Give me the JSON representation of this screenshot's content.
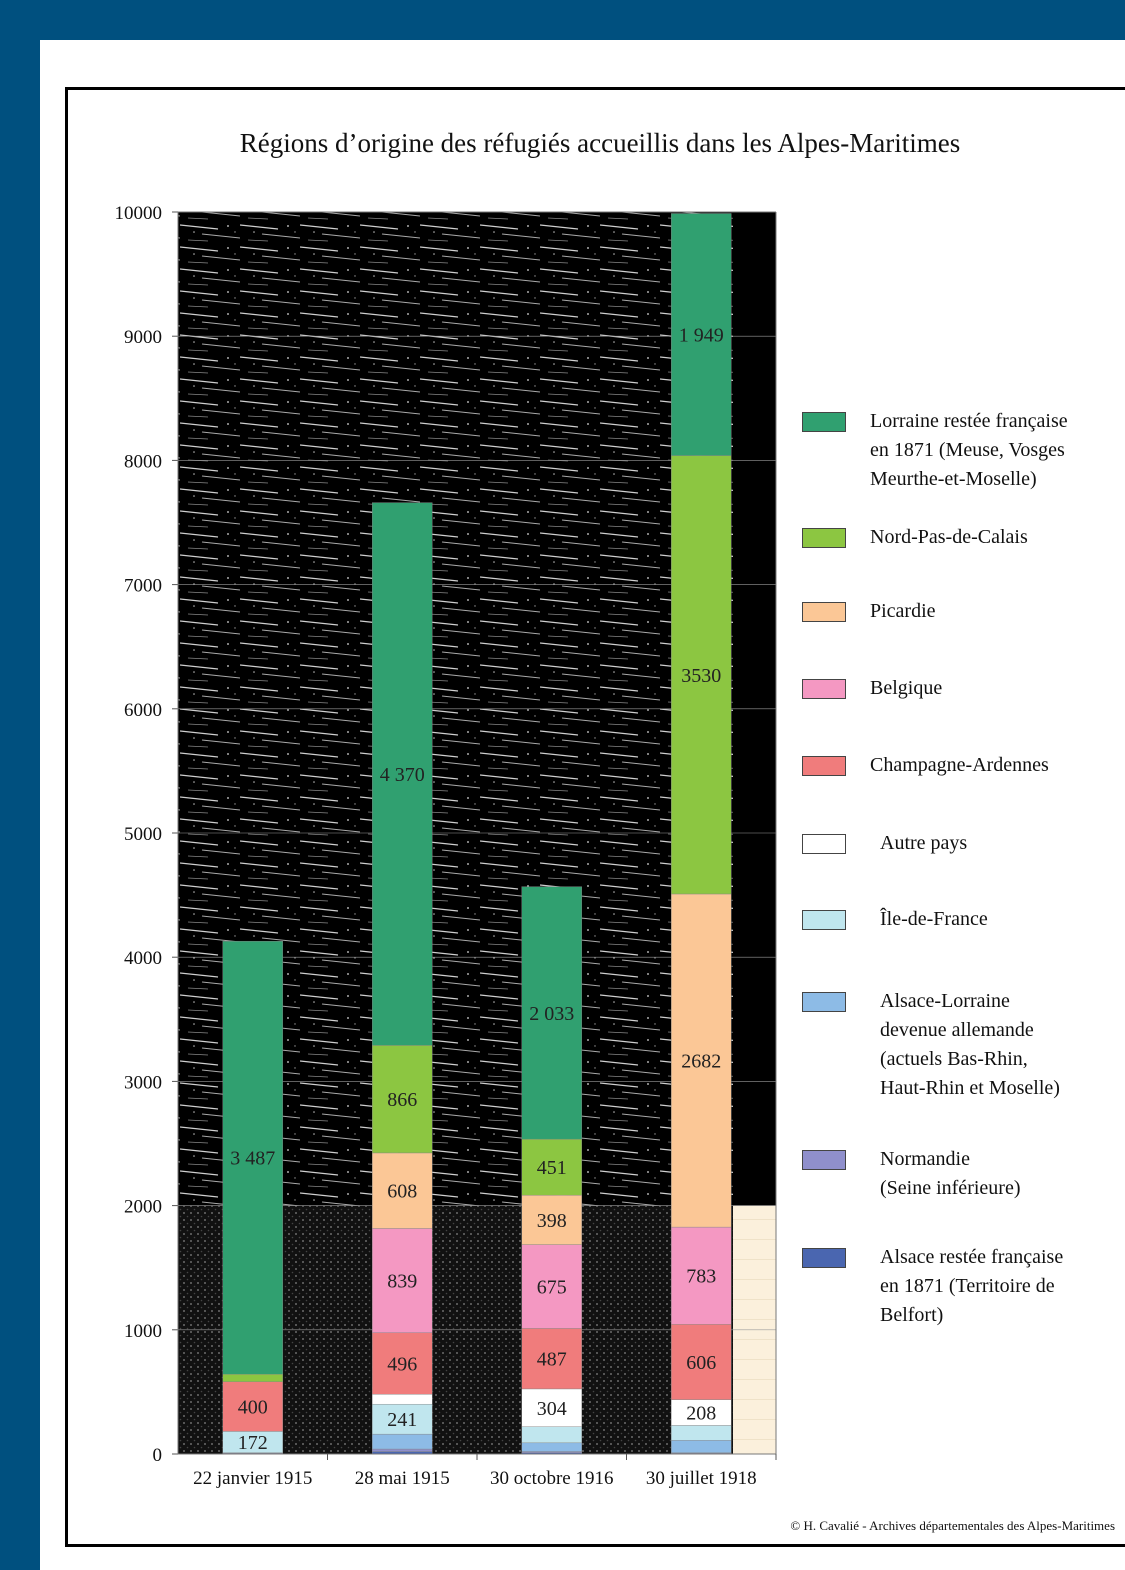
{
  "chart_data": {
    "type": "bar",
    "stacked": true,
    "title": "Régions d’origine des réfugiés accueillis dans les Alpes-Maritimes",
    "xlabel": "",
    "ylabel": "",
    "ylim": [
      0,
      10000
    ],
    "yticks": [
      0,
      1000,
      2000,
      3000,
      4000,
      5000,
      6000,
      7000,
      8000,
      9000,
      10000
    ],
    "categories": [
      "22 janvier 1915",
      "28 mai 1915",
      "30 octobre 1916",
      "30 juillet 1918"
    ],
    "legend_position": "right",
    "series": [
      {
        "name": "Alsace restée française en 1871 (Territoire de Belfort)",
        "color": "#4a66b0",
        "values": [
          5,
          20,
          10,
          5
        ],
        "labels": [
          "",
          "",
          "",
          ""
        ]
      },
      {
        "name": "Normandie (Seine inférieure)",
        "color": "#8f8fcc",
        "values": [
          5,
          20,
          10,
          5
        ],
        "labels": [
          "",
          "",
          "",
          ""
        ]
      },
      {
        "name": "Alsace-Lorraine devenue allemande (actuels Bas-Rhin, Haut-Rhin et Moselle)",
        "color": "#8dbbe6",
        "values": [
          0,
          120,
          70,
          100
        ],
        "labels": [
          "",
          "",
          "",
          ""
        ]
      },
      {
        "name": "Île-de-France",
        "color": "#c0e6ee",
        "values": [
          172,
          241,
          130,
          120
        ],
        "labels": [
          "172",
          "241",
          "",
          ""
        ]
      },
      {
        "name": "Autre pays",
        "color": "#ffffff",
        "values": [
          0,
          80,
          304,
          208
        ],
        "labels": [
          "",
          "",
          "304",
          "208"
        ]
      },
      {
        "name": "Champagne-Ardennes",
        "color": "#f07c7c",
        "values": [
          400,
          496,
          487,
          606
        ],
        "labels": [
          "400",
          "496",
          "487",
          "606"
        ]
      },
      {
        "name": "Belgique",
        "color": "#f498c2",
        "values": [
          0,
          839,
          675,
          783
        ],
        "labels": [
          "",
          "839",
          "675",
          "783"
        ]
      },
      {
        "name": "Picardie",
        "color": "#fbc796",
        "values": [
          0,
          608,
          398,
          2682
        ],
        "labels": [
          "",
          "608",
          "398",
          "2682"
        ]
      },
      {
        "name": "Nord-Pas-de-Calais",
        "color": "#8cc641",
        "values": [
          60,
          866,
          451,
          3530
        ],
        "labels": [
          "",
          "866",
          "451",
          "3530"
        ]
      },
      {
        "name": "Lorraine restée française en 1871 (Meuse, Vosges Meurthe-et-Moselle)",
        "color": "#30a070",
        "values": [
          3487,
          4370,
          2033,
          1949
        ],
        "labels": [
          "3 487",
          "4 370",
          "2 033",
          "1 949"
        ]
      }
    ]
  },
  "legend": {
    "items": [
      {
        "label": "Lorraine restée française\nen 1871 (Meuse, Vosges\nMeurthe-et-Moselle)",
        "color": "#30a070"
      },
      {
        "label": "Nord-Pas-de-Calais",
        "color": "#8cc641"
      },
      {
        "label": "Picardie",
        "color": "#fbc796"
      },
      {
        "label": "Belgique",
        "color": "#f498c2"
      },
      {
        "label": "Champagne-Ardennes",
        "color": "#f07c7c"
      },
      {
        "label": "Autre pays",
        "color": "#ffffff"
      },
      {
        "label": "Île-de-France",
        "color": "#c0e6ee"
      },
      {
        "label": "Alsace-Lorraine\ndevenue allemande\n(actuels Bas-Rhin,\nHaut-Rhin et Moselle)",
        "color": "#8dbbe6"
      },
      {
        "label": "Normandie\n(Seine inférieure)",
        "color": "#8f8fcc"
      },
      {
        "label": "Alsace restée française\nen 1871 (Territoire de\nBelfort)",
        "color": "#4a66b0"
      }
    ]
  },
  "credit": "© H. Cavalié - Archives départementales des Alpes-Maritimes",
  "colors": {
    "frame": "#00507f",
    "background": "#ffffff",
    "plot_background": "#000000"
  }
}
